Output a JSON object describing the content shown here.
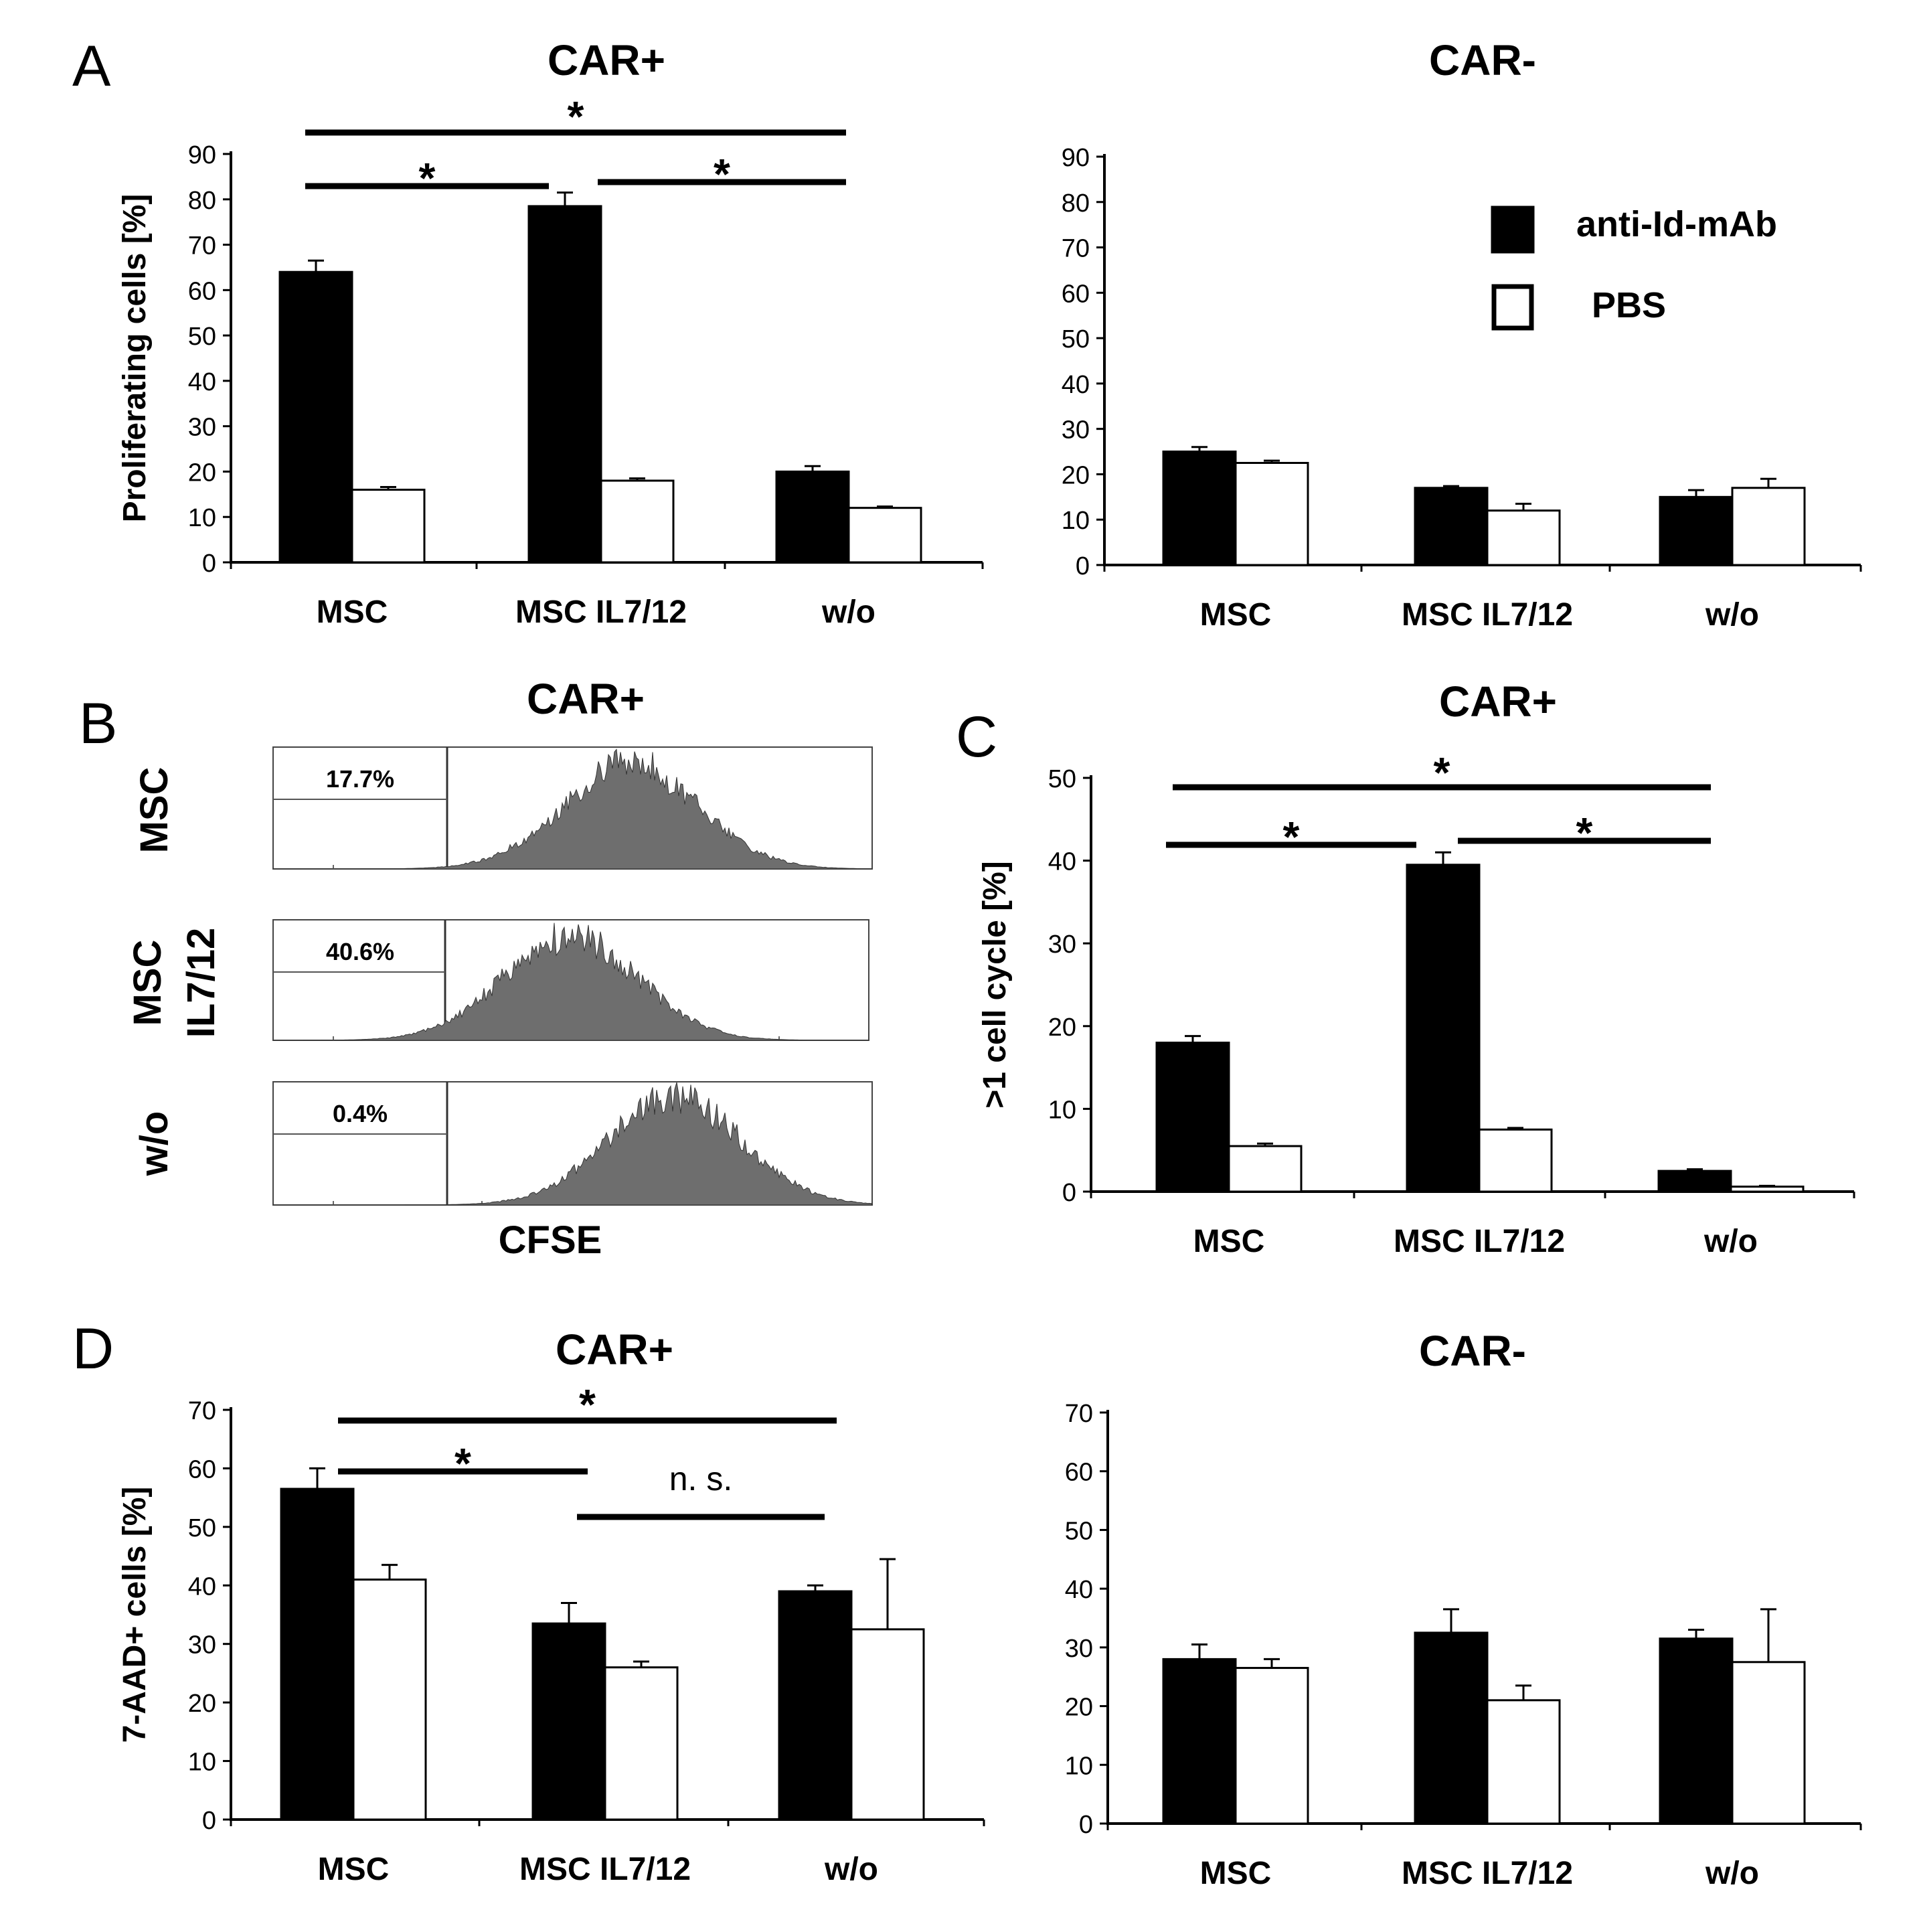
{
  "figure_id": "",
  "panel_labels": {
    "a": "A",
    "b": "B",
    "c": "C",
    "d": "D"
  },
  "legend": [
    {
      "label": "anti-Id-mAb",
      "color": "#000000"
    },
    {
      "label": "PBS",
      "color": "#ffffff"
    }
  ],
  "colors": {
    "bar_dark": "#000000",
    "bar_light": "#ffffff",
    "histogram": "#6e6e6e",
    "axis": "#000000"
  },
  "chart_data": [
    {
      "id": "A-left",
      "type": "bar",
      "title": "CAR+",
      "xlabel": "",
      "ylabel": "Proliferating cells [%]",
      "ylim": [
        0,
        90
      ],
      "yticks": [
        0,
        10,
        20,
        30,
        40,
        50,
        60,
        70,
        80,
        90
      ],
      "categories": [
        "MSC",
        "MSC IL7/12",
        "w/o"
      ],
      "series": [
        {
          "name": "anti-Id-mAb",
          "values": [
            64,
            78.5,
            20
          ],
          "errors": [
            2.5,
            3,
            1.2
          ]
        },
        {
          "name": "PBS",
          "values": [
            16,
            18,
            12
          ],
          "errors": [
            0.6,
            0.5,
            0.3
          ]
        }
      ],
      "significance": [
        {
          "from": 0,
          "to": 1,
          "label": "*"
        },
        {
          "from": 1,
          "to": 2,
          "label": "*"
        },
        {
          "from": 0,
          "to": 2,
          "label": "*"
        }
      ]
    },
    {
      "id": "A-right",
      "type": "bar",
      "title": "CAR-",
      "xlabel": "",
      "ylabel": "",
      "ylim": [
        0,
        90
      ],
      "yticks": [
        0,
        10,
        20,
        30,
        40,
        50,
        60,
        70,
        80,
        90
      ],
      "categories": [
        "MSC",
        "MSC IL7/12",
        "w/o"
      ],
      "series": [
        {
          "name": "anti-Id-mAb",
          "values": [
            25,
            17,
            15
          ],
          "errors": [
            1,
            0.4,
            1.5
          ]
        },
        {
          "name": "PBS",
          "values": [
            22.5,
            12,
            17
          ],
          "errors": [
            0.5,
            1.5,
            2
          ]
        }
      ],
      "significance": []
    },
    {
      "id": "B",
      "type": "histogram",
      "title": "CAR+",
      "xlabel": "CFSE",
      "rows": [
        {
          "label": [
            "MSC"
          ],
          "percent": "17.7%",
          "peak_decade": 2.0
        },
        {
          "label": [
            "MSC",
            "IL7/12"
          ],
          "percent": "40.6%",
          "peak_decade": 1.6
        },
        {
          "label": [
            "w/o"
          ],
          "percent": "0.4%",
          "peak_decade": 2.3
        }
      ]
    },
    {
      "id": "C",
      "type": "bar",
      "title": "CAR+",
      "xlabel": "",
      "ylabel": ">1 cell cycle [%]",
      "ylim": [
        0,
        50
      ],
      "yticks": [
        0,
        10,
        20,
        30,
        40,
        50
      ],
      "categories": [
        "MSC",
        "MSC IL7/12",
        "w/o"
      ],
      "series": [
        {
          "name": "anti-Id-mAb",
          "values": [
            18,
            39.5,
            2.5
          ],
          "errors": [
            0.8,
            1.5,
            0.2
          ]
        },
        {
          "name": "PBS",
          "values": [
            5.5,
            7.5,
            0.6
          ],
          "errors": [
            0.3,
            0.2,
            0.1
          ]
        }
      ],
      "significance": [
        {
          "from": 0,
          "to": 1,
          "label": "*"
        },
        {
          "from": 1,
          "to": 2,
          "label": "*"
        },
        {
          "from": 0,
          "to": 2,
          "label": "*"
        }
      ]
    },
    {
      "id": "D-left",
      "type": "bar",
      "title": "CAR+",
      "xlabel": "",
      "ylabel": "7-AAD+ cells  [%]",
      "ylim": [
        0,
        70
      ],
      "yticks": [
        0,
        10,
        20,
        30,
        40,
        50,
        60,
        70
      ],
      "categories": [
        "MSC",
        "MSC IL7/12",
        "w/o"
      ],
      "series": [
        {
          "name": "anti-Id-mAb",
          "values": [
            56.5,
            33.5,
            39
          ],
          "errors": [
            3.5,
            3.5,
            1
          ]
        },
        {
          "name": "PBS",
          "values": [
            41,
            26,
            32.5
          ],
          "errors": [
            2.5,
            1,
            12
          ]
        }
      ],
      "significance": [
        {
          "from": 0,
          "to": 1,
          "label": "*"
        },
        {
          "from": 1,
          "to": 2,
          "label": "n. s."
        },
        {
          "from": 0,
          "to": 2,
          "label": "*"
        }
      ]
    },
    {
      "id": "D-right",
      "type": "bar",
      "title": "CAR-",
      "xlabel": "",
      "ylabel": "",
      "ylim": [
        0,
        70
      ],
      "yticks": [
        0,
        10,
        20,
        30,
        40,
        50,
        60,
        70
      ],
      "categories": [
        "MSC",
        "MSC IL7/12",
        "w/o"
      ],
      "series": [
        {
          "name": "anti-Id-mAb",
          "values": [
            28,
            32.5,
            31.5
          ],
          "errors": [
            2.5,
            4,
            1.5
          ]
        },
        {
          "name": "PBS",
          "values": [
            26.5,
            21,
            27.5
          ],
          "errors": [
            1.5,
            2.5,
            9
          ]
        }
      ],
      "significance": []
    }
  ]
}
